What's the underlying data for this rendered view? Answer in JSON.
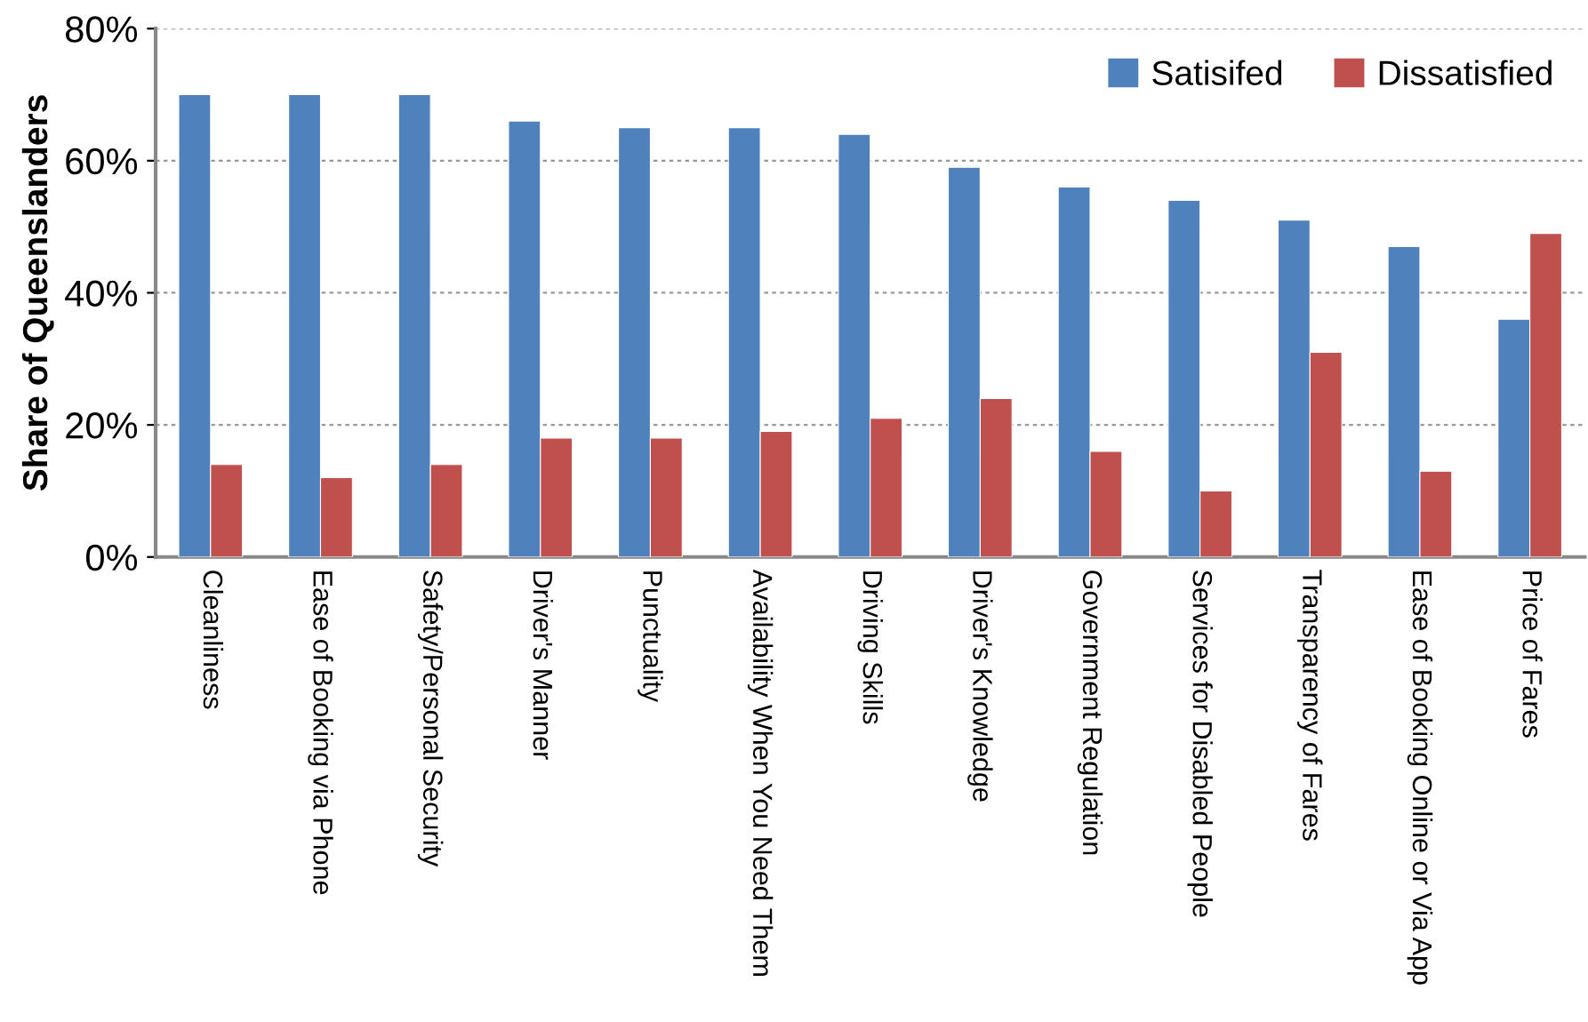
{
  "chart_data": {
    "type": "bar",
    "ylabel": "Share of Queenslanders",
    "categories": [
      "Cleanliness",
      "Ease of Booking via Phone",
      "Safety/Personal Security",
      "Driver's Manner",
      "Punctuality",
      "Availability When You Need Them",
      "Driving Skills",
      "Driver's Knowledge",
      "Government Regulation",
      "Services for Disabled People",
      "Transparency of Fares",
      "Ease of Booking Online or Via App",
      "Price of Fares"
    ],
    "series": [
      {
        "name": "Satisifed",
        "color": "#4f81bd",
        "values": [
          70,
          70,
          70,
          66,
          65,
          65,
          64,
          59,
          56,
          54,
          51,
          47,
          36
        ]
      },
      {
        "name": "Dissatisfied",
        "color": "#c0504d",
        "values": [
          14,
          12,
          14,
          18,
          18,
          19,
          21,
          24,
          16,
          10,
          31,
          13,
          49
        ]
      }
    ],
    "ylim": [
      0,
      80
    ],
    "yticks": [
      {
        "value": 0,
        "label": "0%"
      },
      {
        "value": 20,
        "label": "20%"
      },
      {
        "value": 40,
        "label": "40%"
      },
      {
        "value": 60,
        "label": "60%"
      },
      {
        "value": 80,
        "label": "80%"
      }
    ],
    "grid": "y",
    "legend": "top right"
  }
}
